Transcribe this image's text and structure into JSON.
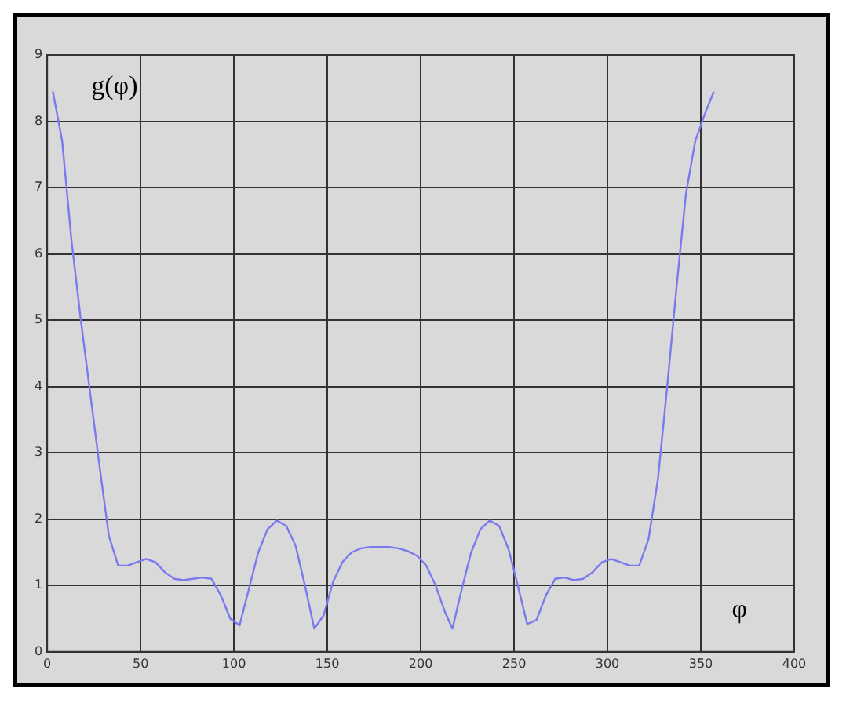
{
  "chart_data": {
    "type": "line",
    "xlabel": "φ",
    "ylabel": "g(φ)",
    "xlim": [
      0,
      400
    ],
    "xticks": [
      0,
      50,
      100,
      150,
      200,
      250,
      300,
      350,
      400
    ],
    "ylim": [
      0,
      9
    ],
    "yticks": [
      0,
      1,
      2,
      3,
      4,
      5,
      6,
      7,
      8,
      9
    ],
    "grid": true,
    "legend": false,
    "marker": "none",
    "line_style": "solid",
    "series": [
      {
        "color": "#7a7aee",
        "x": [
          3,
          8,
          13,
          18,
          23,
          28,
          33,
          38,
          43,
          48,
          53,
          58,
          63,
          68,
          73,
          78,
          83,
          88,
          93,
          98,
          103,
          108,
          113,
          118,
          123,
          128,
          133,
          138,
          143,
          148,
          153,
          158,
          163,
          168,
          173,
          178,
          183,
          188,
          193,
          198,
          203,
          208,
          213,
          217,
          222,
          227,
          232,
          237,
          242,
          247,
          252,
          257,
          262,
          267,
          272,
          277,
          282,
          287,
          292,
          297,
          302,
          307,
          312,
          317,
          322,
          327,
          332,
          337,
          342,
          347,
          352,
          357
        ],
        "values": [
          8.45,
          7.7,
          6.2,
          5,
          3.9,
          2.8,
          1.75,
          1.3,
          1.3,
          1.35,
          1.4,
          1.35,
          1.2,
          1.1,
          1.08,
          1.1,
          1.12,
          1.1,
          0.85,
          0.5,
          0.4,
          0.95,
          1.5,
          1.85,
          1.98,
          1.9,
          1.6,
          1,
          0.35,
          0.55,
          1.05,
          1.35,
          1.5,
          1.56,
          1.58,
          1.58,
          1.58,
          1.56,
          1.52,
          1.45,
          1.3,
          1,
          0.6,
          0.35,
          0.95,
          1.5,
          1.85,
          1.98,
          1.9,
          1.55,
          1,
          0.42,
          0.48,
          0.85,
          1.1,
          1.12,
          1.08,
          1.1,
          1.2,
          1.35,
          1.4,
          1.35,
          1.3,
          1.3,
          1.7,
          2.6,
          4,
          5.5,
          6.9,
          7.7,
          8.1,
          8.45
        ]
      }
    ]
  }
}
